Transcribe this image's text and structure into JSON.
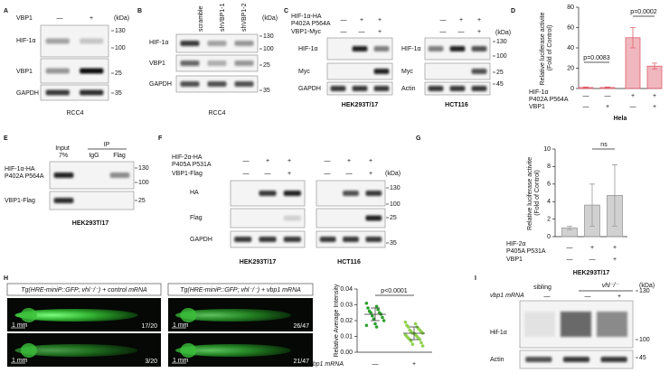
{
  "panels": {
    "A": {
      "label": "A",
      "treatment": "VBP1",
      "lanes": [
        "—",
        "+"
      ],
      "unit": "(kDa)",
      "rows": [
        "HIF-1α",
        "VBP1",
        "GAPDH"
      ],
      "markers": [
        130,
        100,
        25,
        35
      ],
      "cell": "RCC4"
    },
    "B": {
      "label": "B",
      "lanes": [
        "scramble",
        "shVBP1-1",
        "shVBP1-2"
      ],
      "unit": "(kDa)",
      "rows": [
        "HIF-1α",
        "VBP1",
        "GAPDH"
      ],
      "markers": [
        130,
        100,
        25,
        35
      ],
      "cell": "RCC4"
    },
    "C": {
      "label": "C",
      "conditions": [
        {
          "name": "HIF-1α-HA P402A P564A",
          "signs": [
            "—",
            "+",
            "+",
            "—",
            "+",
            "+"
          ]
        },
        {
          "name": "VBP1-Myc",
          "signs": [
            "—",
            "—",
            "+",
            "—",
            "—",
            "+"
          ]
        }
      ],
      "unit": "(kDa)",
      "blots": [
        {
          "cell": "HEK293T/17",
          "rows": [
            "HIF-1α",
            "Myc",
            "GAPDH"
          ]
        },
        {
          "cell": "HCT116",
          "rows": [
            "HIF-1α",
            "Myc",
            "Actin"
          ]
        }
      ],
      "markers": [
        130,
        100,
        25,
        45
      ]
    },
    "E": {
      "label": "E",
      "lanes": [
        "Input 7%",
        "IgG",
        "Flag"
      ],
      "group": "IP",
      "rows": [
        "HIF-1α-HA P402A P564A",
        "VBP1-Flag"
      ],
      "markers": [
        130,
        100,
        25
      ],
      "cell": "HEK293T/17"
    },
    "F": {
      "label": "F",
      "conditions": [
        {
          "name": "HIF-2α-HA P405A P531A",
          "signs": [
            "—",
            "+",
            "+",
            "—",
            "+",
            "+"
          ]
        },
        {
          "name": "VBP1-Flag",
          "signs": [
            "—",
            "—",
            "+",
            "—",
            "—",
            "+"
          ]
        }
      ],
      "unit": "(kDa)",
      "rows": [
        "HA",
        "Flag",
        "GAPDH"
      ],
      "markers": [
        130,
        100,
        25,
        35
      ],
      "cells": [
        "HEK293T/17",
        "HCT116"
      ]
    },
    "H": {
      "label": "H",
      "images": [
        {
          "title": "Tg(HRE-miniP::GFP; vhl⁻/⁻) + control mRNA",
          "counts": [
            "17/20",
            "3/20"
          ]
        },
        {
          "title": "Tg(HRE-miniP::GFP; vhl⁻/⁻) + vbp1 mRNA",
          "counts": [
            "26/47",
            "21/47"
          ]
        }
      ],
      "scale": "1 mm"
    },
    "I": {
      "label": "I",
      "groups": [
        "sibling",
        "vhl⁻/⁻"
      ],
      "treatment": "vbp1 mRNA",
      "signs": [
        "—",
        "—",
        "+"
      ],
      "unit": "(kDa)",
      "rows": [
        "Hif-1α",
        "Actin"
      ],
      "markers": [
        130,
        100,
        45
      ]
    }
  },
  "chart_data": [
    {
      "type": "bar",
      "label": "D",
      "ylabel": "Relative luciferase activite (Fold of Control)",
      "ylim": [
        0,
        80
      ],
      "yticks": [
        0,
        20,
        40,
        60,
        80
      ],
      "values": [
        1,
        1,
        50,
        22
      ],
      "errors": [
        0.5,
        0.5,
        10,
        3
      ],
      "color": "#e0606e",
      "annotations": [
        "p=0.0083",
        "p=0.0002"
      ],
      "conditions": [
        {
          "name": "HIF-1α P402A P564A",
          "signs": [
            "—",
            "—",
            "+",
            "+"
          ]
        },
        {
          "name": "VBP1",
          "signs": [
            "—",
            "+",
            "—",
            "+"
          ]
        }
      ],
      "cell": "Hela"
    },
    {
      "type": "bar",
      "label": "G",
      "ylabel": "Relative luciferase activite (Fold of Control)",
      "ylim": [
        0,
        10
      ],
      "yticks": [
        0,
        2,
        4,
        6,
        8,
        10
      ],
      "values": [
        1,
        3.6,
        4.7
      ],
      "errors": [
        0.2,
        2.4,
        3.5
      ],
      "color": "#9a9a9a",
      "annotations": [
        "ns"
      ],
      "conditions": [
        {
          "name": "HIF-2α P405A P531A",
          "signs": [
            "—",
            "+",
            "+"
          ]
        },
        {
          "name": "VBP1",
          "signs": [
            "—",
            "—",
            "+"
          ]
        }
      ],
      "cell": "HEK293T/17"
    },
    {
      "type": "scatter",
      "ylabel": "Relative Average Intensity",
      "xlabel": "vbp1 mRNA",
      "categories": [
        "—",
        "+"
      ],
      "ylim": [
        0,
        0.04
      ],
      "yticks": [
        {
          "value": 0,
          "label": "0.00"
        },
        {
          "value": 0.01,
          "label": "0.01"
        },
        {
          "value": 0.02,
          "label": "0.02"
        },
        {
          "value": 0.03,
          "label": "0.03"
        },
        {
          "value": 0.04,
          "label": "0.04"
        }
      ],
      "annotations": [
        "p<0.0001"
      ],
      "groups": [
        {
          "color": "#2ca02c",
          "mean": 0.024,
          "sd": 0.004,
          "values": [
            0.031,
            0.029,
            0.028,
            0.027,
            0.026,
            0.025,
            0.025,
            0.024,
            0.023,
            0.022,
            0.021,
            0.02,
            0.018,
            0.017,
            0.016
          ]
        },
        {
          "color": "#8fd14f",
          "mean": 0.012,
          "sd": 0.004,
          "values": [
            0.019,
            0.018,
            0.017,
            0.016,
            0.016,
            0.015,
            0.014,
            0.014,
            0.013,
            0.013,
            0.012,
            0.012,
            0.012,
            0.011,
            0.011,
            0.01,
            0.01,
            0.009,
            0.009,
            0.008,
            0.008,
            0.007,
            0.006,
            0.005,
            0.004
          ]
        }
      ]
    }
  ]
}
